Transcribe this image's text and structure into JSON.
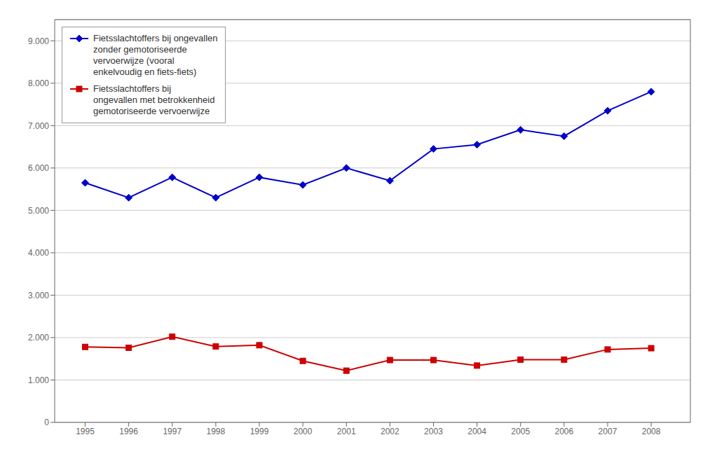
{
  "chart_data": {
    "type": "line",
    "x": [
      1995,
      1996,
      1997,
      1998,
      1999,
      2000,
      2001,
      2002,
      2003,
      2004,
      2005,
      2006,
      2007,
      2008
    ],
    "xlim": [
      1994.3,
      2008.9
    ],
    "xticks": [
      1995,
      1996,
      1997,
      1998,
      1999,
      2000,
      2001,
      2002,
      2003,
      2004,
      2005,
      2006,
      2007,
      2008
    ],
    "ylim": [
      0,
      9500
    ],
    "yticks": [
      0,
      {
        "value": 1000,
        "label": "1.000"
      },
      {
        "value": 2000,
        "label": "2.000"
      },
      {
        "value": 3000,
        "label": "3.000"
      },
      {
        "value": 4000,
        "label": "4.000"
      },
      {
        "value": 5000,
        "label": "5.000"
      },
      {
        "value": 6000,
        "label": "6.000"
      },
      {
        "value": 7000,
        "label": "7.000"
      },
      {
        "value": 8000,
        "label": "8.000"
      },
      {
        "value": 9000,
        "label": "9.000"
      }
    ],
    "grid": "y",
    "legend": "upper left",
    "series": [
      {
        "name": "Fietsslachtoffers bij ongevallen\nzonder gemotoriseerde\nvervoerwijze (vooral\nenkelvoudig en fiets-fiets)",
        "color": "#0000cc",
        "marker": "diamond",
        "values": [
          5650,
          5300,
          5780,
          5300,
          5780,
          5600,
          6000,
          5700,
          6450,
          6550,
          6900,
          6750,
          7350,
          7800
        ]
      },
      {
        "name": "Fietsslachtoffers bij\nongevallen met betrokkenheid\ngemotoriseerde vervoerwijze",
        "color": "#cc0000",
        "marker": "square",
        "values": [
          1780,
          1760,
          2020,
          1790,
          1820,
          1450,
          1220,
          1470,
          1470,
          1340,
          1480,
          1480,
          1720,
          1750
        ]
      }
    ]
  }
}
